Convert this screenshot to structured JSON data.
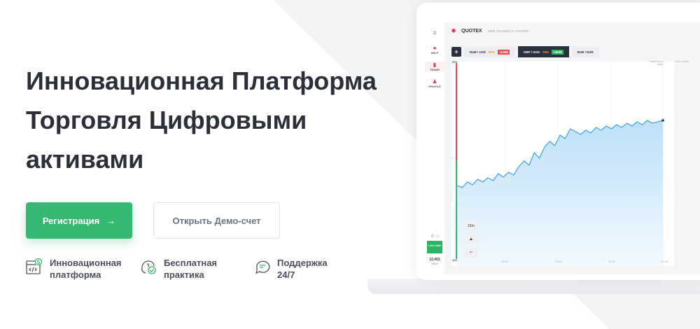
{
  "hero": {
    "title_lines": [
      "Инновационная Платформа",
      "Торговля Цифровыми",
      "активами"
    ]
  },
  "buttons": {
    "register": "Регистрация",
    "register_icon": "arrow-right-icon",
    "demo": "Открыть Демо-счет"
  },
  "features": [
    {
      "icon": "code-dollar-icon",
      "line1": "Инновационная",
      "line2": "платформа"
    },
    {
      "icon": "brain-check-icon",
      "line1": "Бесплатная",
      "line2": "практика"
    },
    {
      "icon": "chat-bubbles-icon",
      "line1": "Поддержка",
      "line2": "24/7"
    }
  ],
  "colors": {
    "accent": "#35b871",
    "text": "#2c2f38",
    "chart_line": "#3ba3e6",
    "down": "#e94b4b"
  },
  "mockup": {
    "brand": "QUOTEX",
    "subtitle": "WEB TRADING PLATFORM",
    "sidebar": [
      "HELP",
      "TRADE",
      "PROFILE"
    ],
    "tabs": [
      {
        "pair": "RUB / USD",
        "pct": "80%",
        "change": "-3,05$"
      },
      {
        "pair": "GBP / SGD",
        "pct": "75%",
        "change": "+400$"
      },
      {
        "pair": "RUB / EUR"
      }
    ],
    "markers": {
      "begin": "Beginning of trade",
      "end": "End of trade"
    },
    "pct_top": "60%",
    "pct_bottom": "40%",
    "timeframe": "15m",
    "times": [
      "23:00",
      "23:15",
      "23:30",
      "23:45"
    ],
    "online_count": "12,453",
    "online_label": "online",
    "chat": "Live chat"
  }
}
